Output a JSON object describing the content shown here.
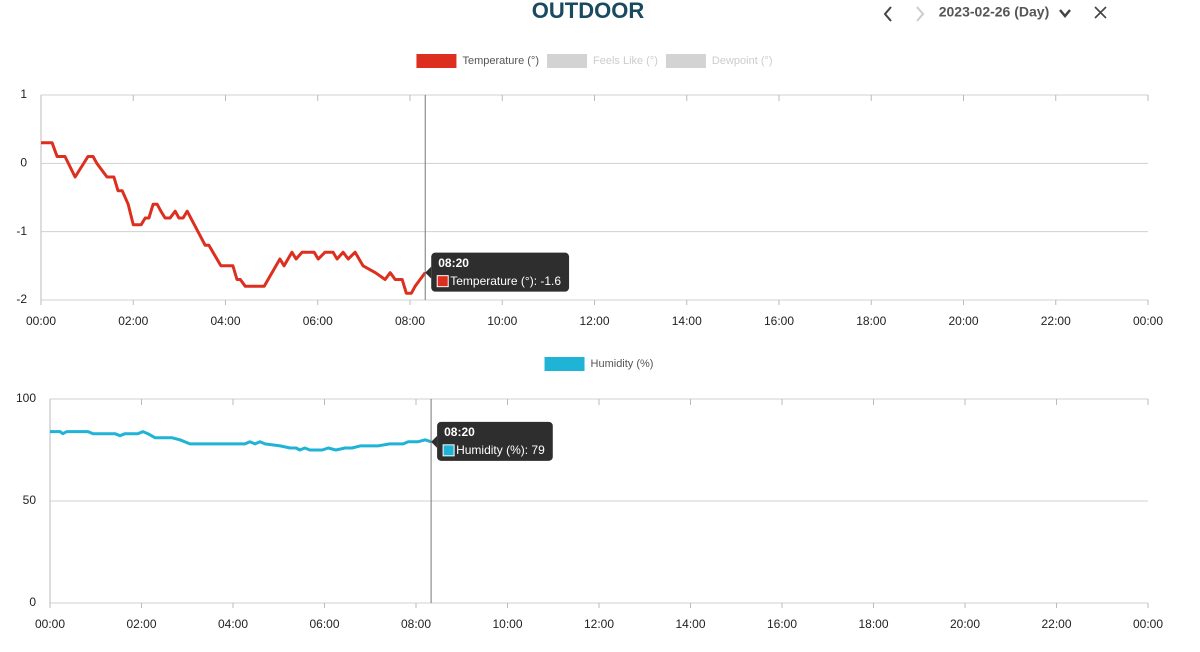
{
  "header": {
    "title": "OUTDOOR",
    "date": "2023-02-26 (Day)"
  },
  "chart_data": [
    {
      "type": "line",
      "xlim": [
        0,
        24
      ],
      "xticks": [
        {
          "value": 0,
          "label": "00:00"
        },
        {
          "value": 2,
          "label": "02:00"
        },
        {
          "value": 4,
          "label": "04:00"
        },
        {
          "value": 6,
          "label": "06:00"
        },
        {
          "value": 8,
          "label": "08:00"
        },
        {
          "value": 10,
          "label": "10:00"
        },
        {
          "value": 12,
          "label": "12:00"
        },
        {
          "value": 14,
          "label": "14:00"
        },
        {
          "value": 16,
          "label": "16:00"
        },
        {
          "value": 18,
          "label": "18:00"
        },
        {
          "value": 20,
          "label": "20:00"
        },
        {
          "value": 22,
          "label": "22:00"
        },
        {
          "value": 24,
          "label": "00:00"
        }
      ],
      "ylim": [
        -2,
        1
      ],
      "yticks": [
        -2,
        -1,
        0,
        1
      ],
      "grid": true,
      "x": [
        0,
        0.24,
        0.35,
        0.52,
        0.74,
        1.02,
        1.13,
        1.21,
        1.43,
        1.58,
        1.67,
        1.76,
        1.89,
        2.0,
        2.17,
        2.26,
        2.34,
        2.43,
        2.52,
        2.6,
        2.69,
        2.8,
        2.91,
        2.99,
        3.08,
        3.17,
        3.56,
        3.64,
        3.9,
        4.16,
        4.25,
        4.32,
        4.43,
        4.84,
        5.18,
        5.27,
        5.44,
        5.53,
        5.66,
        5.92,
        6.01,
        6.16,
        6.33,
        6.42,
        6.55,
        6.66,
        6.81,
        6.98,
        7.25,
        7.46,
        7.57,
        7.68,
        7.83,
        7.92,
        8.03,
        8.11,
        8.22,
        8.33
      ],
      "series": [
        {
          "name": "Temperature (°)",
          "color": "#dc2f1f",
          "values": [
            0.3,
            0.3,
            0.1,
            0.1,
            -0.2,
            0.1,
            0.1,
            0,
            -0.2,
            -0.2,
            -0.4,
            -0.4,
            -0.6,
            -0.9,
            -0.9,
            -0.8,
            -0.8,
            -0.6,
            -0.6,
            -0.7,
            -0.8,
            -0.8,
            -0.7,
            -0.8,
            -0.8,
            -0.7,
            -1.2,
            -1.2,
            -1.5,
            -1.5,
            -1.7,
            -1.7,
            -1.8,
            -1.8,
            -1.4,
            -1.5,
            -1.3,
            -1.4,
            -1.3,
            -1.3,
            -1.4,
            -1.3,
            -1.3,
            -1.4,
            -1.3,
            -1.4,
            -1.3,
            -1.5,
            -1.6,
            -1.7,
            -1.6,
            -1.7,
            -1.7,
            -1.9,
            -1.9,
            -1.8,
            -1.7,
            -1.6
          ]
        }
      ],
      "hidden_series": [
        {
          "name": "Feels Like (°)",
          "color": "#d3d3d3"
        },
        {
          "name": "Dewpoint (°)",
          "color": "#d3d3d3"
        }
      ],
      "tooltip": {
        "title": "08:20",
        "text": "Temperature (°): -1.6"
      }
    },
    {
      "type": "line",
      "xlim": [
        0,
        24
      ],
      "xticks": [
        {
          "value": 0,
          "label": "00:00"
        },
        {
          "value": 2,
          "label": "02:00"
        },
        {
          "value": 4,
          "label": "04:00"
        },
        {
          "value": 6,
          "label": "06:00"
        },
        {
          "value": 8,
          "label": "08:00"
        },
        {
          "value": 10,
          "label": "10:00"
        },
        {
          "value": 12,
          "label": "12:00"
        },
        {
          "value": 14,
          "label": "14:00"
        },
        {
          "value": 16,
          "label": "16:00"
        },
        {
          "value": 18,
          "label": "18:00"
        },
        {
          "value": 20,
          "label": "20:00"
        },
        {
          "value": 22,
          "label": "22:00"
        },
        {
          "value": 24,
          "label": "00:00"
        }
      ],
      "ylim": [
        0,
        100
      ],
      "yticks": [
        0,
        50,
        100
      ],
      "grid": true,
      "x": [
        0,
        0.22,
        0.28,
        0.37,
        0.83,
        0.94,
        1.42,
        1.53,
        1.64,
        1.92,
        2.03,
        2.14,
        2.3,
        2.67,
        2.84,
        3.06,
        4.26,
        4.37,
        4.48,
        4.59,
        4.7,
        5.03,
        5.25,
        5.38,
        5.46,
        5.57,
        5.68,
        5.95,
        6.08,
        6.25,
        6.45,
        6.6,
        6.78,
        7.17,
        7.43,
        7.72,
        7.83,
        8.04,
        8.2,
        8.33
      ],
      "series": [
        {
          "name": "Humidity (%)",
          "color": "#1fb3d6",
          "values": [
            84,
            84,
            83,
            84,
            84,
            83,
            83,
            82,
            83,
            83,
            84,
            83,
            81,
            81,
            80,
            78,
            78,
            79,
            78,
            79,
            78,
            77,
            76,
            76,
            75,
            76,
            75,
            75,
            76,
            75,
            76,
            76,
            77,
            77,
            78,
            78,
            79,
            79,
            80,
            79
          ]
        }
      ],
      "tooltip": {
        "title": "08:20",
        "text": "Humidity (%): 79"
      }
    }
  ]
}
